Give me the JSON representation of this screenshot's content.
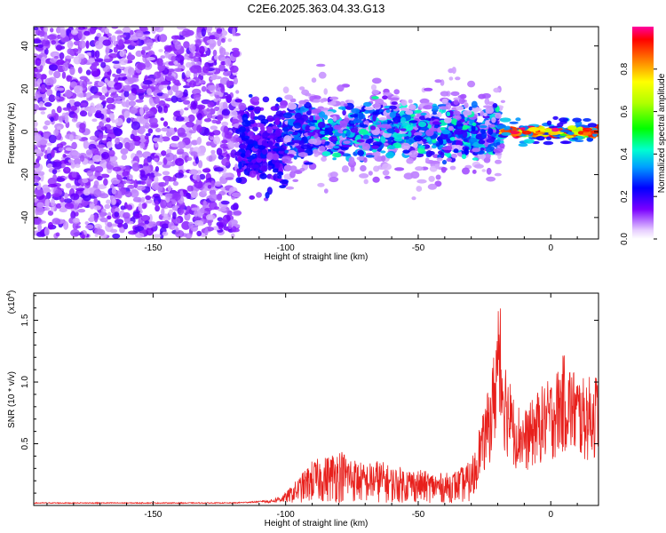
{
  "colors": {
    "background": "#ffffff",
    "axis": "#000000",
    "snr_line": "#e8201c",
    "spectro_faint": "#d4b8f5",
    "spectro_mid": "#a070f0",
    "spectro_strong": "#6a00f0"
  },
  "chart_data": [
    {
      "type": "heatmap",
      "title": "C2E6.2025.363.04.33.G13",
      "xlabel": "Height of straight line (km)",
      "ylabel": "Frequency (Hz)",
      "xlim": [
        -195,
        18
      ],
      "ylim": [
        -50,
        49
      ],
      "xticks": [
        -150,
        -100,
        -50,
        0
      ],
      "xtick_labels": [
        "-150",
        "-100",
        "-50",
        "0"
      ],
      "yticks": [
        -40,
        -20,
        0,
        20,
        40
      ],
      "ytick_labels": [
        "-40",
        "-20",
        "0",
        "20",
        "40"
      ],
      "colorbar": {
        "label": "Normalized spectral amplitude",
        "range": [
          0,
          1
        ],
        "ticks": [
          0.0,
          0.2,
          0.4,
          0.6,
          0.8
        ],
        "tick_labels": [
          "0.0",
          "0.2",
          "0.4",
          "0.6",
          "0.8"
        ]
      },
      "regions": [
        {
          "name": "noise",
          "x_range": [
            -195,
            -118
          ],
          "freq_spread": 49,
          "amplitude": 0.1
        },
        {
          "name": "onset",
          "x_range": [
            -118,
            -100
          ],
          "freq_center": -6,
          "freq_spread": 14,
          "amplitude": 0.2
        },
        {
          "name": "signal",
          "x_range": [
            -100,
            -18
          ],
          "freq_center": 0,
          "freq_spread": 8,
          "amplitude": 0.3
        },
        {
          "name": "strong-signal",
          "x_range": [
            -18,
            18
          ],
          "freq_center": 0,
          "freq_spread": 2,
          "amplitude": 0.95
        }
      ]
    },
    {
      "type": "line",
      "title": "",
      "xlabel": "Height of straight line (km)",
      "ylabel": "SNR (10 * v/v)",
      "scale_label": "(x10",
      "scale_exponent": "4",
      "scale_close": ")",
      "xlim": [
        -195,
        18
      ],
      "ylim": [
        0,
        1.72
      ],
      "xticks": [
        -150,
        -100,
        -50,
        0
      ],
      "xtick_labels": [
        "-150",
        "-100",
        "-50",
        "0"
      ],
      "yticks": [
        0.5,
        1.0,
        1.5
      ],
      "ytick_labels": [
        "0.5",
        "1.0",
        "1.5"
      ],
      "series": [
        {
          "name": "SNR",
          "x": [
            -195,
            -180,
            -160,
            -140,
            -120,
            -110,
            -105,
            -100,
            -95,
            -90,
            -85,
            -80,
            -75,
            -70,
            -65,
            -60,
            -55,
            -50,
            -45,
            -40,
            -35,
            -30,
            -28,
            -25,
            -22,
            -20,
            -18,
            -15,
            -12,
            -10,
            -8,
            -5,
            -3,
            0,
            3,
            5,
            8,
            10,
            12,
            15,
            18
          ],
          "values": [
            0.02,
            0.02,
            0.02,
            0.02,
            0.02,
            0.03,
            0.05,
            0.1,
            0.22,
            0.35,
            0.38,
            0.45,
            0.38,
            0.32,
            0.36,
            0.3,
            0.3,
            0.28,
            0.26,
            0.25,
            0.28,
            0.35,
            0.55,
            0.75,
            1.1,
            1.6,
            1.3,
            0.9,
            0.8,
            0.75,
            0.8,
            0.9,
            0.95,
            1.0,
            1.1,
            1.2,
            1.1,
            1.05,
            1.0,
            1.02,
            1.05
          ]
        }
      ]
    }
  ]
}
